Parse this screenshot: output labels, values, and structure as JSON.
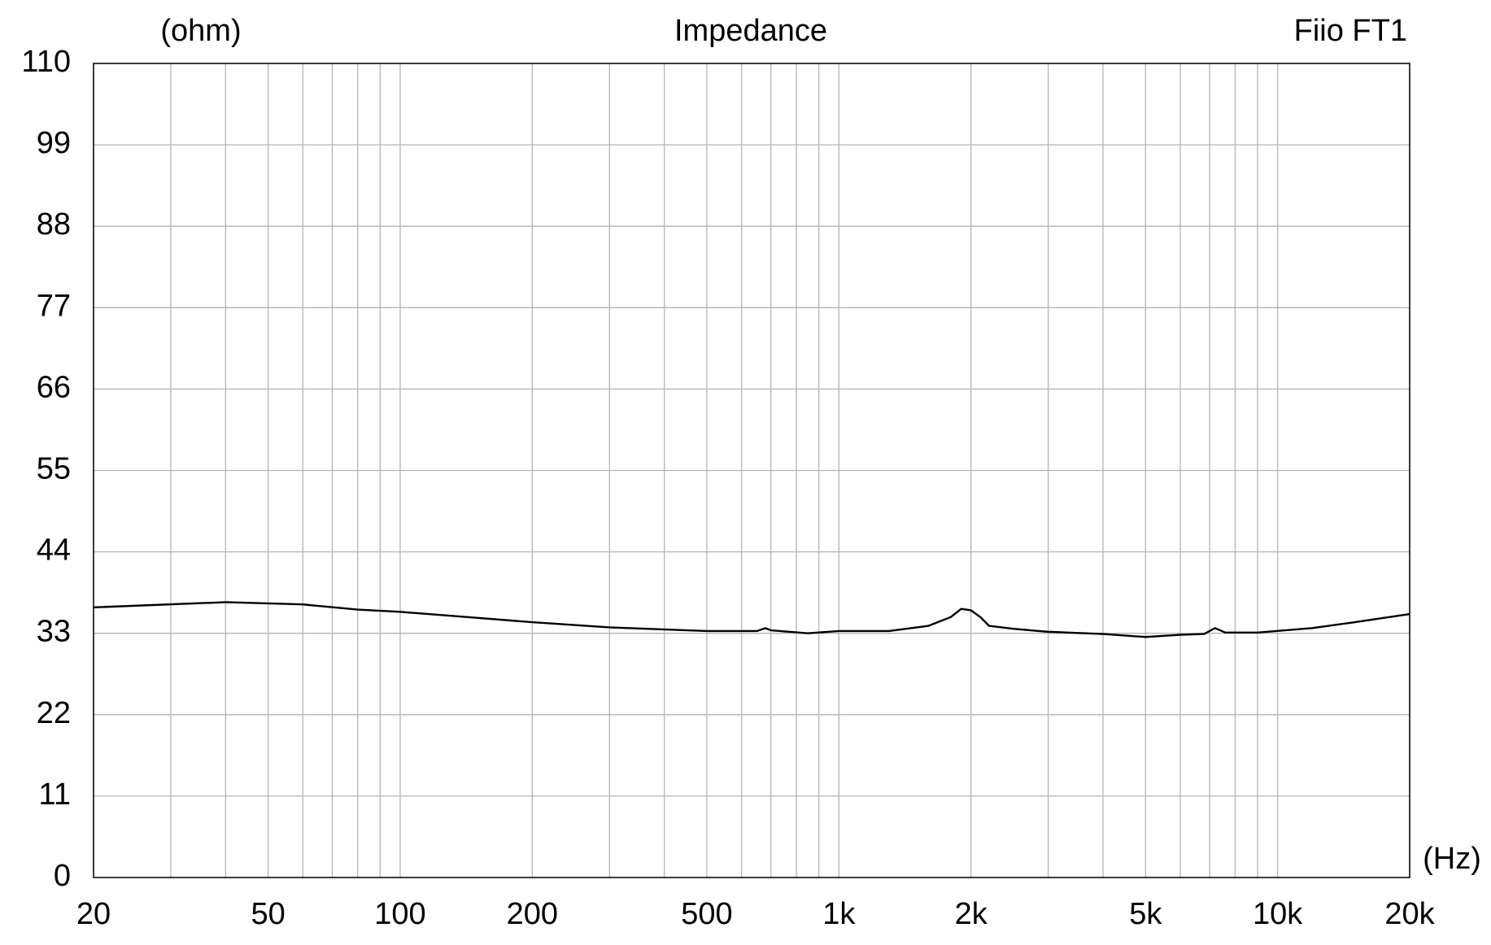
{
  "chart_data": {
    "type": "line",
    "title": "Impedance",
    "subtitle": "Fiio FT1",
    "ylabel": "(ohm)",
    "xlabel": "(Hz)",
    "x": [
      20,
      40,
      60,
      80,
      100,
      200,
      300,
      500,
      650,
      680,
      700,
      850,
      1000,
      1300,
      1600,
      1800,
      1900,
      2000,
      2100,
      2200,
      2500,
      3000,
      4000,
      5000,
      6000,
      6800,
      7200,
      7600,
      9000,
      12000,
      15000,
      20000
    ],
    "values": [
      36.5,
      37.2,
      36.9,
      36.2,
      35.9,
      34.5,
      33.8,
      33.3,
      33.3,
      33.7,
      33.4,
      33.0,
      33.3,
      33.3,
      34.0,
      35.2,
      36.3,
      36.1,
      35.2,
      34.0,
      33.6,
      33.2,
      32.9,
      32.5,
      32.8,
      32.9,
      33.7,
      33.1,
      33.1,
      33.7,
      34.5,
      35.6
    ],
    "color": "#000000",
    "xscale": "log",
    "xlim": [
      20,
      20000
    ],
    "ylim": [
      0,
      110
    ],
    "xticks": [
      20,
      50,
      100,
      200,
      500,
      {
        "value": 1000,
        "label": "1k"
      },
      {
        "value": 2000,
        "label": "2k"
      },
      {
        "value": 5000,
        "label": "5k"
      },
      {
        "value": 10000,
        "label": "10k"
      },
      {
        "value": 20000,
        "label": "20k"
      }
    ],
    "xminorticks": [
      30,
      40,
      60,
      70,
      80,
      90,
      300,
      400,
      600,
      700,
      800,
      900,
      3000,
      4000,
      6000,
      7000,
      8000,
      9000
    ],
    "yticks": [
      0,
      11,
      22,
      33,
      44,
      55,
      66,
      77,
      88,
      99,
      110
    ],
    "grid": true
  }
}
